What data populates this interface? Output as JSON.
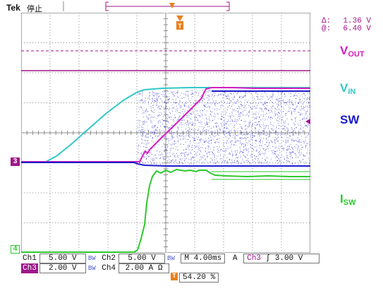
{
  "header": {
    "brand": "Tek",
    "state": "停止"
  },
  "cursor_readout": [
    {
      "symbol": "Δ:",
      "value": "1.36 V"
    },
    {
      "symbol": "@:",
      "value": "6.40 V"
    }
  ],
  "signal_labels": {
    "vout": {
      "main": "V",
      "sub": "OUT"
    },
    "vin": {
      "main": "V",
      "sub": "IN"
    },
    "sw": {
      "main": "SW"
    },
    "isw": {
      "main": "I",
      "sub": "SW"
    }
  },
  "channel_markers": {
    "ch3": "3",
    "ch4": "4"
  },
  "trigger_marker": {
    "glyph": "T"
  },
  "bottom": {
    "row1": {
      "ch1_label": "Ch1",
      "ch1_scale": "5.00 V",
      "ch1_bw": "BW",
      "ch2_label": "Ch2",
      "ch2_scale": "5.00 V",
      "ch2_bw": "BW",
      "timebase": "M 4.00ms",
      "acq": "A",
      "trig_source": "Ch3",
      "trig_slope": "∫",
      "trig_level": "3.00 V"
    },
    "row2": {
      "ch3_label": "Ch3",
      "ch3_scale": "2.00 V",
      "ch3_bw": "BW",
      "ch4_label": "Ch4",
      "ch4_scale": "2.00 A Ω"
    },
    "trigger_position": "54.20 %"
  },
  "colors": {
    "grid": "#8c8c8c",
    "vout": "#d61fbf",
    "vin": "#33c8c8",
    "sw": "#1b1bc9",
    "isw": "#2cc92c",
    "ch3_marker": "#a0168a",
    "trigger": "#e8801c"
  }
}
